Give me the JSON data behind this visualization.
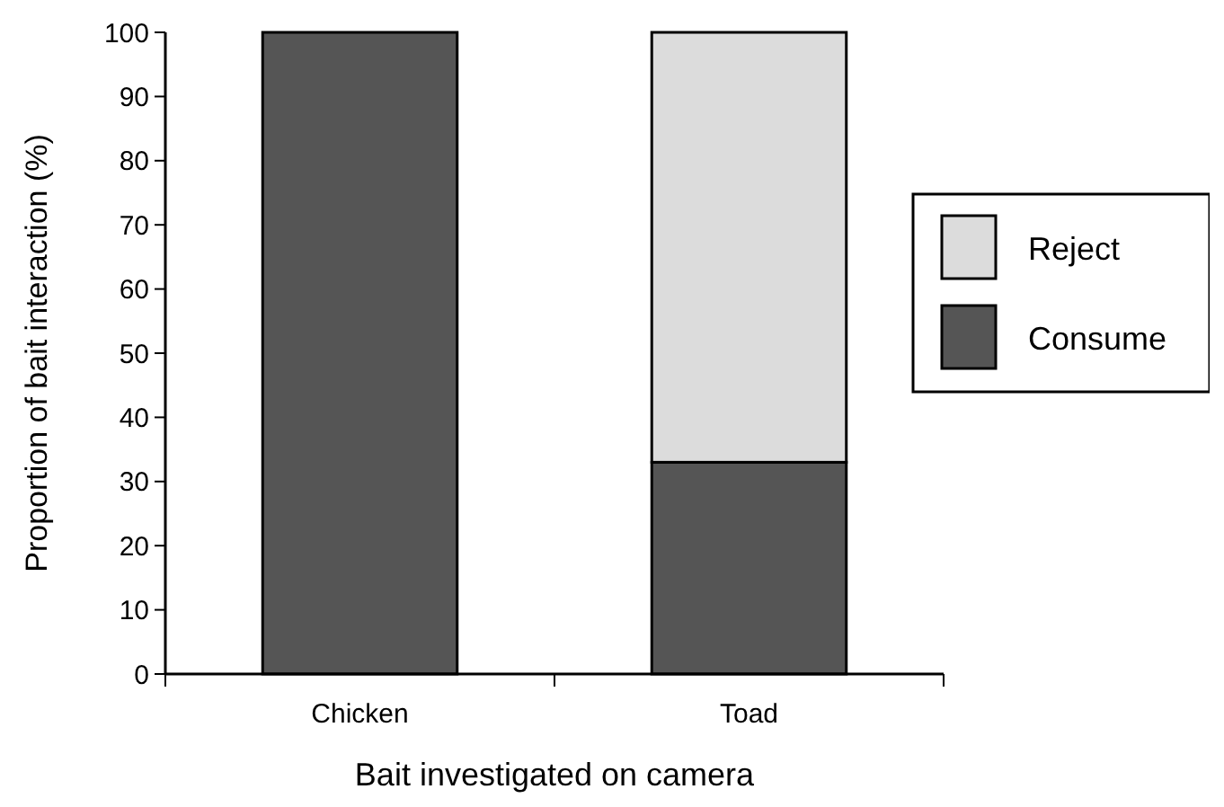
{
  "chart_data": {
    "type": "bar",
    "stacked": true,
    "xlabel": "Bait investigated on camera",
    "ylabel": "Proportion of bait interaction (%)",
    "categories": [
      "Chicken",
      "Toad"
    ],
    "series": [
      {
        "name": "Consume",
        "color": "#555555",
        "values": [
          100,
          33
        ]
      },
      {
        "name": "Reject",
        "color": "#dcdcdc",
        "values": [
          0,
          67
        ]
      }
    ],
    "ylim": [
      0,
      100
    ],
    "yticks": [
      0,
      10,
      20,
      30,
      40,
      50,
      60,
      70,
      80,
      90,
      100
    ],
    "grid": false,
    "legend": "right"
  }
}
